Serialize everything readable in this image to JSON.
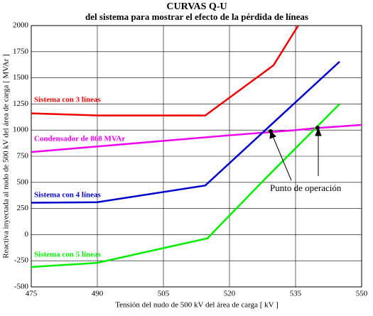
{
  "chart_data": {
    "type": "line",
    "title": "CURVAS  Q-U",
    "subtitle": "del sistema para mostrar el efecto de la pérdida de líneas",
    "x_label": "Tensión del nudo de 500 kV del área de carga [ kV ]",
    "y_label": "Reactiva inyectada al nudo de 500 kV del área de carga [ MVAr ]",
    "annotation": "Punto de operación",
    "xlim": [
      475,
      550
    ],
    "xticks": [
      475,
      490,
      505,
      520,
      535,
      550
    ],
    "ylim": [
      -500,
      2000
    ],
    "yticks": [
      -500,
      -250,
      0,
      250,
      500,
      750,
      1000,
      1250,
      1500,
      1750,
      2000
    ],
    "grid": true,
    "series": [
      {
        "name": "Sistema con 3 líneas",
        "color": "#ee0000",
        "x": [
          475,
          490,
          514.5,
          530,
          535.6
        ],
        "values": [
          1160,
          1140,
          1140,
          1620,
          2000
        ]
      },
      {
        "name": "Condensador de 868 MVAr",
        "color": "#ee00ee",
        "x": [
          475,
          520,
          535,
          540,
          550
        ],
        "values": [
          790,
          950,
          1000,
          1020,
          1050
        ]
      },
      {
        "name": "Sistema con 4 líneas",
        "color": "#0000cc",
        "x": [
          475,
          490,
          514.5,
          545
        ],
        "values": [
          305,
          310,
          470,
          1655
        ]
      },
      {
        "name": "Sistema con 5 líneas",
        "color": "#00ee00",
        "x": [
          475,
          490,
          515,
          528,
          545
        ],
        "values": [
          -310,
          -270,
          -35,
          530,
          1250
        ]
      }
    ]
  }
}
